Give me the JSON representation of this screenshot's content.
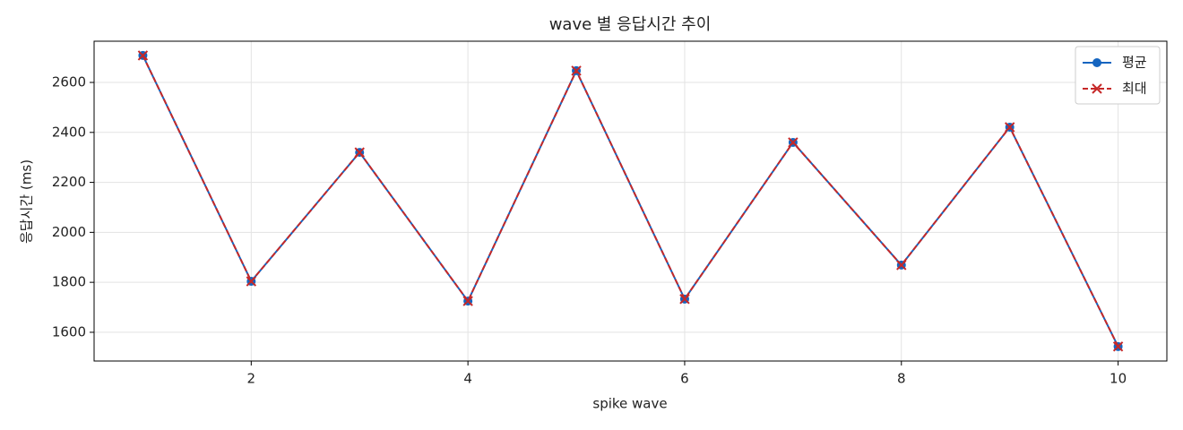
{
  "chart_data": {
    "type": "line",
    "title": "wave 별 응답시간 추이",
    "xlabel": "spike wave",
    "ylabel": "응답시간 (ms)",
    "x": [
      1,
      2,
      3,
      4,
      5,
      6,
      7,
      8,
      9,
      10
    ],
    "series": [
      {
        "name": "평균",
        "color": "#1565c0",
        "marker": "o",
        "linestyle": "solid",
        "values": [
          2708,
          1804,
          2320,
          1725,
          2647,
          1733,
          2360,
          1869,
          2421,
          1543
        ]
      },
      {
        "name": "최대",
        "color": "#c62828",
        "marker": "x",
        "linestyle": "dashed",
        "values": [
          2708,
          1804,
          2320,
          1725,
          2647,
          1733,
          2360,
          1869,
          2421,
          1543
        ]
      }
    ],
    "xlim": [
      0.55,
      10.45
    ],
    "xticks": [
      2,
      4,
      6,
      8,
      10
    ],
    "ylim": [
      1485,
      2765
    ],
    "yticks": [
      1600,
      1800,
      2000,
      2200,
      2400,
      2600
    ],
    "grid": true,
    "legend": "upper right"
  }
}
